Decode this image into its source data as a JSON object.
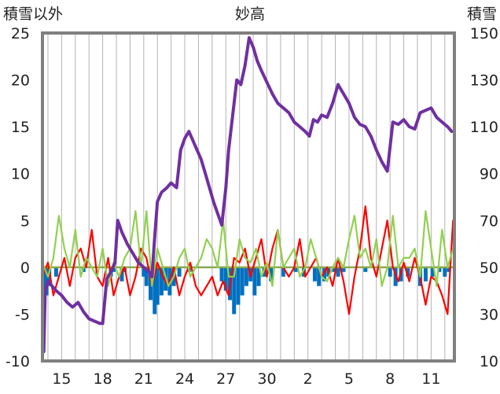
{
  "chart_data": {
    "type": "line",
    "title": "妙高",
    "ylabel": "積雪以外",
    "y2label": "積雪",
    "ylim": [
      -10,
      25
    ],
    "y2lim": [
      10,
      150
    ],
    "y_ticks": [
      25,
      20,
      15,
      10,
      5,
      0,
      -5,
      -10
    ],
    "y2_ticks": [
      150,
      130,
      110,
      90,
      70,
      50,
      30,
      10
    ],
    "x_ticks": [
      "15",
      "18",
      "21",
      "24",
      "27",
      "30",
      "2",
      "5",
      "8",
      "11"
    ],
    "xlim": [
      13.6,
      43.7
    ],
    "x_tick_positions": [
      15,
      18,
      21,
      24,
      27,
      30,
      33,
      36,
      39,
      42
    ],
    "grid": "vertical",
    "colors": {
      "snow_depth": "#7030a0",
      "temp_max": "#ff0000",
      "temp_min": "#92d050",
      "snowfall": "#0070c0",
      "zero_line": "#8aa850",
      "frame": "#808080"
    },
    "series": [
      {
        "axis": "right",
        "color": "#7030a0",
        "x": [
          13.7,
          13.8,
          14.0,
          14.3,
          14.6,
          15.0,
          15.4,
          15.8,
          16.2,
          16.6,
          17.0,
          17.4,
          17.8,
          18.0,
          18.3,
          18.6,
          18.9,
          19.1,
          19.4,
          19.8,
          20.2,
          20.6,
          21.0,
          21.4,
          21.6,
          21.8,
          22.0,
          22.3,
          22.7,
          23.0,
          23.4,
          23.7,
          24.0,
          24.3,
          24.6,
          24.9,
          25.2,
          25.5,
          25.8,
          26.1,
          26.4,
          26.7,
          27.0,
          27.2,
          27.5,
          27.8,
          28.1,
          28.4,
          28.7,
          29.0,
          29.3,
          29.6,
          30.0,
          30.4,
          30.8,
          31.2,
          31.6,
          32.0,
          32.4,
          32.8,
          33.1,
          33.4,
          33.7,
          34.0,
          34.4,
          34.8,
          35.2,
          35.6,
          36.0,
          36.4,
          36.8,
          37.2,
          37.6,
          38.0,
          38.4,
          38.8,
          39.2,
          39.6,
          40.0,
          40.4,
          40.8,
          41.2,
          41.6,
          42.0,
          42.4,
          42.8,
          43.2,
          43.5
        ],
        "values": [
          14,
          40,
          44,
          42,
          40,
          38,
          35,
          33,
          35,
          31,
          28,
          27,
          26,
          26,
          45,
          48,
          52,
          70,
          65,
          60,
          56,
          52,
          50,
          48,
          46,
          63,
          78,
          82,
          84,
          86,
          84,
          100,
          105,
          108,
          104,
          100,
          96,
          90,
          84,
          78,
          73,
          68,
          84,
          100,
          115,
          130,
          128,
          136,
          148,
          144,
          138,
          134,
          129,
          124,
          120,
          118,
          116,
          112,
          110,
          108,
          106,
          113,
          112,
          115,
          114,
          120,
          128,
          124,
          120,
          114,
          111,
          110,
          106,
          100,
          95,
          91,
          112,
          111,
          113,
          110,
          109,
          116,
          117,
          118,
          114,
          112,
          110,
          108
        ]
      },
      {
        "axis": "left",
        "color": "#ff0000",
        "x": [
          13.6,
          14.0,
          14.4,
          14.8,
          15.2,
          15.6,
          16.0,
          16.4,
          16.8,
          17.2,
          17.6,
          18.0,
          18.4,
          18.8,
          19.2,
          19.6,
          20.0,
          20.4,
          20.8,
          21.2,
          21.6,
          22.0,
          22.4,
          22.8,
          23.2,
          23.6,
          24.0,
          24.4,
          24.8,
          25.2,
          25.6,
          26.0,
          26.4,
          26.8,
          27.2,
          27.6,
          28.0,
          28.4,
          28.8,
          29.2,
          29.6,
          30.0,
          30.4,
          30.8,
          31.2,
          31.6,
          32.0,
          32.4,
          32.8,
          33.2,
          33.6,
          34.0,
          34.4,
          34.8,
          35.2,
          35.6,
          36.0,
          36.4,
          36.8,
          37.2,
          37.6,
          38.0,
          38.4,
          38.8,
          39.2,
          39.6,
          40.0,
          40.4,
          40.8,
          41.2,
          41.6,
          42.0,
          42.4,
          42.8,
          43.2,
          43.6
        ],
        "values": [
          -1,
          0.5,
          -3,
          -1,
          1,
          -2,
          1,
          2,
          0,
          4,
          -1,
          -2,
          1,
          -3,
          -1,
          0,
          -3,
          -1,
          2,
          1,
          -2,
          0.5,
          -1,
          -2,
          0,
          -3,
          -1,
          0.5,
          -2,
          -3,
          -2,
          -1,
          -3,
          -1.5,
          -3,
          1,
          0.5,
          2,
          -1,
          1,
          3,
          -1,
          2,
          4,
          0,
          -1,
          0,
          3,
          -1,
          0,
          1,
          -1,
          0,
          -2,
          1,
          -1.5,
          -5,
          -1,
          2,
          6.5,
          1,
          -1,
          2,
          5,
          0,
          -1.5,
          0.5,
          -1.5,
          1,
          -1,
          -4,
          -1,
          -1.5,
          -3,
          -5,
          5
        ]
      },
      {
        "axis": "left",
        "color": "#92d050",
        "x": [
          13.6,
          14.0,
          14.4,
          14.8,
          15.2,
          15.6,
          16.0,
          16.4,
          16.8,
          17.2,
          17.6,
          18.0,
          18.4,
          18.8,
          19.2,
          19.6,
          20.0,
          20.4,
          20.8,
          21.2,
          21.6,
          22.0,
          22.4,
          22.8,
          23.2,
          23.6,
          24.0,
          24.4,
          24.8,
          25.2,
          25.6,
          26.0,
          26.4,
          26.8,
          27.2,
          27.6,
          28.0,
          28.4,
          28.8,
          29.2,
          29.6,
          30.0,
          30.4,
          30.8,
          31.2,
          31.6,
          32.0,
          32.4,
          32.8,
          33.2,
          33.6,
          34.0,
          34.4,
          34.8,
          35.2,
          35.6,
          36.0,
          36.4,
          36.8,
          37.2,
          37.6,
          38.0,
          38.4,
          38.8,
          39.2,
          39.6,
          40.0,
          40.4,
          40.8,
          41.2,
          41.6,
          42.0,
          42.4,
          42.8,
          43.2,
          43.6
        ],
        "values": [
          0.5,
          -1,
          1,
          5.5,
          2,
          0,
          4,
          -1,
          1,
          0,
          -1,
          2,
          -2,
          0.5,
          -1,
          1,
          2,
          6,
          0,
          6,
          -2,
          2,
          0,
          -2,
          -1,
          1,
          2,
          -1,
          0,
          1,
          3,
          2,
          0,
          5,
          -1,
          -1,
          3,
          1,
          0.5,
          2,
          -1,
          0.5,
          -2,
          4,
          0,
          1,
          2,
          -1,
          0,
          3,
          1,
          -1,
          -1.5,
          0,
          1,
          0,
          3,
          5.5,
          1,
          2,
          0,
          3,
          -2,
          0,
          5.5,
          0,
          1,
          1,
          2,
          -1,
          6,
          2,
          -2,
          4,
          0,
          2
        ]
      },
      {
        "axis": "left",
        "type": "bar",
        "color": "#0070c0",
        "x": [
          13.7,
          13.9,
          14.1,
          14.6,
          16.6,
          18.6,
          18.8,
          19.4,
          19.6,
          21.0,
          21.2,
          21.5,
          21.8,
          22.0,
          22.3,
          22.6,
          22.9,
          23.2,
          23.6,
          24.3,
          26.7,
          27.0,
          27.3,
          27.6,
          27.9,
          28.2,
          28.5,
          28.8,
          29.1,
          29.4,
          29.8,
          30.3,
          31.2,
          32.1,
          32.7,
          33.5,
          33.8,
          34.2,
          34.5,
          34.9,
          35.2,
          35.6,
          37.2,
          39.0,
          39.4,
          39.8,
          40.3,
          41.2,
          41.6,
          42.1,
          42.6,
          43.0,
          43.3
        ],
        "values": [
          -2.5,
          -3,
          -2,
          -1,
          -0.5,
          -1,
          -0.5,
          -1.5,
          -0.5,
          -1,
          -2,
          -3.5,
          -5,
          -4,
          -3,
          -2.5,
          -3,
          -2,
          -1,
          -0.5,
          -1.5,
          -2.5,
          -3.5,
          -5,
          -4,
          -3,
          -2,
          -1.5,
          -3,
          -2,
          -1,
          -1.5,
          -1,
          -0.5,
          -1,
          -1.5,
          -2,
          -1.5,
          -1,
          -0.5,
          -1,
          -0.5,
          -0.5,
          -1,
          -2,
          -1.5,
          -1,
          -2,
          -1.5,
          -1,
          -0.5,
          -1,
          -0.5
        ]
      }
    ]
  }
}
